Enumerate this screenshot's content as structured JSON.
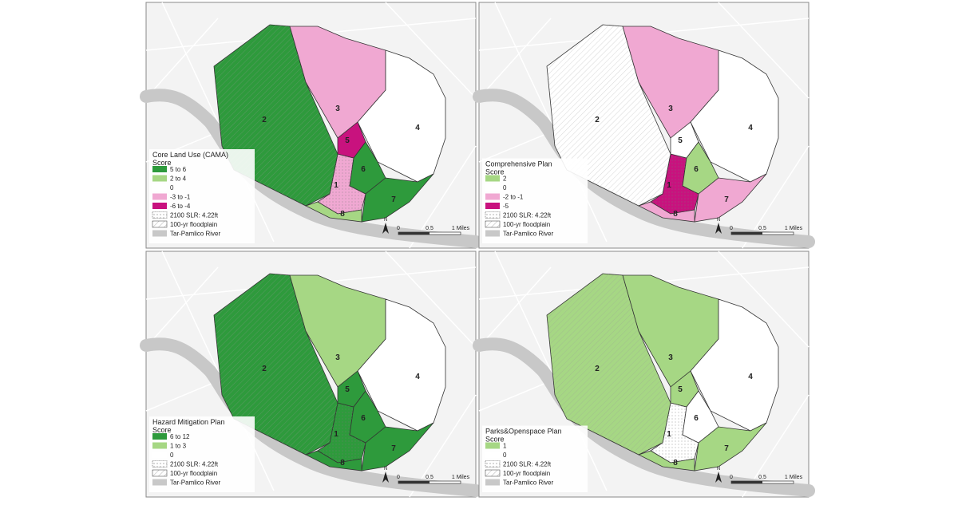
{
  "panels": [
    {
      "legend_title": [
        "Core Land Use (CAMA)",
        "Score"
      ],
      "legend_items": [
        {
          "label": "5 to 6",
          "color": "#2e9a3c"
        },
        {
          "label": "2 to 4",
          "color": "#a6d784"
        },
        {
          "label": "0",
          "color": "#ffffff"
        },
        {
          "label": "-3 to -1",
          "color": "#f0a8d2"
        },
        {
          "label": "-6 to -4",
          "color": "#c8127e"
        },
        {
          "label": "2100 SLR: 4.22ft",
          "pattern": "dots"
        },
        {
          "label": "100-yr floodplain",
          "pattern": "hatch"
        },
        {
          "label": "Tar-Pamlico River",
          "color": "#c8c8c8"
        }
      ],
      "zone_fills": [
        "#f0a8d2",
        "#2e9a3c",
        "#f0a8d2",
        "#ffffff",
        "#c8127e",
        "#2e9a3c",
        "#2e9a3c",
        "#a6d784"
      ],
      "zone_labels": [
        "1",
        "2",
        "3",
        "4",
        "5",
        "6",
        "7",
        "8"
      ],
      "scale_labels": [
        "0",
        "0.5",
        "1 Miles"
      ],
      "north": "N"
    },
    {
      "legend_title": [
        "Comprehensive Plan",
        "Score"
      ],
      "legend_items": [
        {
          "label": "2",
          "color": "#a6d784"
        },
        {
          "label": "0",
          "color": "#ffffff"
        },
        {
          "label": "-2 to -1",
          "color": "#f0a8d2"
        },
        {
          "label": "-5",
          "color": "#c8127e"
        },
        {
          "label": "2100 SLR: 4.22ft",
          "pattern": "dots"
        },
        {
          "label": "100-yr floodplain",
          "pattern": "hatch"
        },
        {
          "label": "Tar-Pamlico River",
          "color": "#c8c8c8"
        }
      ],
      "zone_fills": [
        "#c8127e",
        "#ffffff",
        "#f0a8d2",
        "#ffffff",
        "#ffffff",
        "#a6d784",
        "#f0a8d2",
        "#f0a8d2"
      ],
      "zone_labels": [
        "1",
        "2",
        "3",
        "4",
        "5",
        "6",
        "7",
        "8"
      ],
      "scale_labels": [
        "0",
        "0.5",
        "1 Miles"
      ],
      "north": "N"
    },
    {
      "legend_title": [
        "Hazard Mitigation Plan",
        "Score"
      ],
      "legend_items": [
        {
          "label": "6 to 12",
          "color": "#2e9a3c"
        },
        {
          "label": "1 to 3",
          "color": "#a6d784"
        },
        {
          "label": "0",
          "color": "#ffffff"
        },
        {
          "label": "2100 SLR: 4.22ft",
          "pattern": "dots"
        },
        {
          "label": "100-yr floodplain",
          "pattern": "hatch"
        },
        {
          "label": "Tar-Pamlico River",
          "color": "#c8c8c8"
        }
      ],
      "zone_fills": [
        "#2e9a3c",
        "#2e9a3c",
        "#a6d784",
        "#ffffff",
        "#2e9a3c",
        "#2e9a3c",
        "#2e9a3c",
        "#2e9a3c"
      ],
      "zone_labels": [
        "1",
        "2",
        "3",
        "4",
        "5",
        "6",
        "7",
        "8"
      ],
      "scale_labels": [
        "0",
        "0.5",
        "1 Miles"
      ],
      "north": "N"
    },
    {
      "legend_title": [
        "Parks&Openspace Plan",
        "Score"
      ],
      "legend_items": [
        {
          "label": "1",
          "color": "#a6d784"
        },
        {
          "label": "0",
          "color": "#ffffff"
        },
        {
          "label": "2100 SLR: 4.22ft",
          "pattern": "dots"
        },
        {
          "label": "100-yr floodplain",
          "pattern": "hatch"
        },
        {
          "label": "Tar-Pamlico River",
          "color": "#c8c8c8"
        }
      ],
      "zone_fills": [
        "#ffffff",
        "#a6d784",
        "#a6d784",
        "#ffffff",
        "#a6d784",
        "#ffffff",
        "#a6d784",
        "#a6d784"
      ],
      "zone_labels": [
        "1",
        "2",
        "3",
        "4",
        "5",
        "6",
        "7",
        "8"
      ],
      "scale_labels": [
        "0",
        "0.5",
        "1 Miles"
      ],
      "north": "N"
    }
  ]
}
